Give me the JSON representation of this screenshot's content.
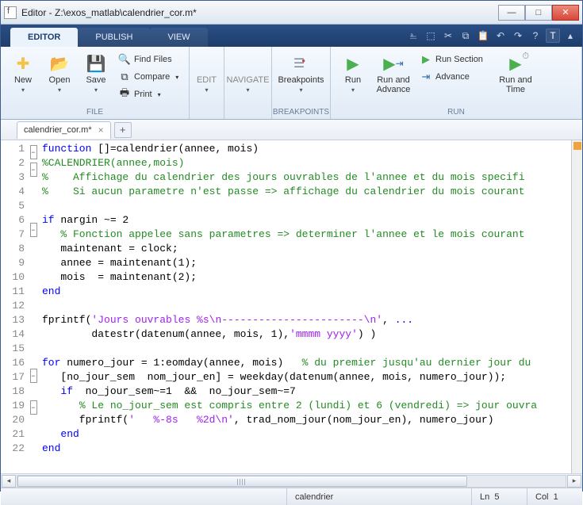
{
  "window": {
    "title": "Editor - Z:\\exos_matlab\\calendrier_cor.m*",
    "minimize": "—",
    "maximize": "□",
    "close": "✕"
  },
  "ribbon_tabs": {
    "editor": "EDITOR",
    "publish": "PUBLISH",
    "view": "VIEW"
  },
  "ribbon": {
    "file": {
      "new": "New",
      "open": "Open",
      "save": "Save",
      "find_files": "Find Files",
      "compare": "Compare",
      "print": "Print",
      "group": "FILE"
    },
    "edit": "EDIT",
    "navigate": "NAVIGATE",
    "breakpoints": {
      "breakpoints": "Breakpoints",
      "group": "BREAKPOINTS"
    },
    "run": {
      "run": "Run",
      "run_advance": "Run and\nAdvance",
      "run_section": "Run Section",
      "advance": "Advance",
      "run_time": "Run and\nTime",
      "group": "RUN"
    }
  },
  "file_tab": {
    "name": "calendrier_cor.m*",
    "add": "+"
  },
  "code": {
    "lines": [
      {
        "n": 1,
        "fold": "-",
        "seg": [
          [
            "kw",
            "function"
          ],
          [
            "",
            " []=calendrier(annee, mois)"
          ]
        ]
      },
      {
        "n": 2,
        "fold": "-",
        "seg": [
          [
            "cm",
            "%CALENDRIER(annee,mois)"
          ]
        ]
      },
      {
        "n": 3,
        "fold": "",
        "seg": [
          [
            "cm",
            "%    Affichage du calendrier des jours ouvrables de l'annee et du mois specifi"
          ]
        ]
      },
      {
        "n": 4,
        "fold": "",
        "seg": [
          [
            "cm",
            "%    Si aucun parametre n'est passe => affichage du calendrier du mois courant"
          ]
        ]
      },
      {
        "n": 5,
        "fold": "",
        "seg": [
          [
            "",
            ""
          ]
        ]
      },
      {
        "n": 6,
        "fold": "-",
        "seg": [
          [
            "kw",
            "if"
          ],
          [
            "",
            " nargin ~= 2"
          ]
        ]
      },
      {
        "n": 7,
        "fold": "",
        "seg": [
          [
            "",
            "   "
          ],
          [
            "cm",
            "% Fonction appelee sans parametres => determiner l'annee et le mois courant"
          ]
        ]
      },
      {
        "n": 8,
        "fold": "",
        "seg": [
          [
            "",
            "   maintenant = clock;"
          ]
        ]
      },
      {
        "n": 9,
        "fold": "",
        "seg": [
          [
            "",
            "   annee = maintenant(1);"
          ]
        ]
      },
      {
        "n": 10,
        "fold": "",
        "seg": [
          [
            "",
            "   mois  = maintenant(2);"
          ]
        ]
      },
      {
        "n": 11,
        "fold": "",
        "seg": [
          [
            "kw",
            "end"
          ]
        ]
      },
      {
        "n": 12,
        "fold": "",
        "seg": [
          [
            "",
            ""
          ]
        ]
      },
      {
        "n": 13,
        "fold": "",
        "seg": [
          [
            "",
            "fprintf("
          ],
          [
            "str",
            "'Jours ouvrables %s\\n-----------------------\\n'"
          ],
          [
            "",
            ", "
          ],
          [
            "kw",
            "..."
          ]
        ]
      },
      {
        "n": 14,
        "fold": "",
        "seg": [
          [
            "",
            "        datestr(datenum(annee, mois, 1),"
          ],
          [
            "str",
            "'mmmm yyyy'"
          ],
          [
            "",
            ") )"
          ]
        ]
      },
      {
        "n": 15,
        "fold": "",
        "seg": [
          [
            "",
            ""
          ]
        ]
      },
      {
        "n": 16,
        "fold": "-",
        "seg": [
          [
            "kw",
            "for"
          ],
          [
            "",
            " numero_jour = 1:eomday(annee, mois)   "
          ],
          [
            "cm",
            "% du premier jusqu'au dernier jour du"
          ]
        ]
      },
      {
        "n": 17,
        "fold": "",
        "seg": [
          [
            "",
            "   [no_jour_sem  nom_jour_en] = weekday(datenum(annee, mois, numero_jour));"
          ]
        ]
      },
      {
        "n": 18,
        "fold": "-",
        "seg": [
          [
            "",
            "   "
          ],
          [
            "kw",
            "if"
          ],
          [
            "",
            "  no_jour_sem~=1  &&  no_jour_sem~=7"
          ]
        ]
      },
      {
        "n": 19,
        "fold": "",
        "seg": [
          [
            "",
            "      "
          ],
          [
            "cm",
            "% Le no_jour_sem est compris entre 2 (lundi) et 6 (vendredi) => jour ouvra"
          ]
        ]
      },
      {
        "n": 20,
        "fold": "",
        "seg": [
          [
            "",
            "      fprintf("
          ],
          [
            "str",
            "'   %-8s   %2d\\n'"
          ],
          [
            "",
            ", trad_nom_jour(nom_jour_en), numero_jour)"
          ]
        ]
      },
      {
        "n": 21,
        "fold": "",
        "seg": [
          [
            "",
            "   "
          ],
          [
            "kw",
            "end"
          ]
        ]
      },
      {
        "n": 22,
        "fold": "",
        "seg": [
          [
            "kw",
            "end"
          ]
        ]
      }
    ]
  },
  "status": {
    "func": "calendrier",
    "line_label": "Ln",
    "line": "5",
    "col_label": "Col",
    "col": "1"
  },
  "colors": {
    "keyword": "#0000ff",
    "comment": "#228b22",
    "string": "#a020f0",
    "titlebar_bg": "#e8eef6",
    "ribbon_dark": "#264a80"
  }
}
